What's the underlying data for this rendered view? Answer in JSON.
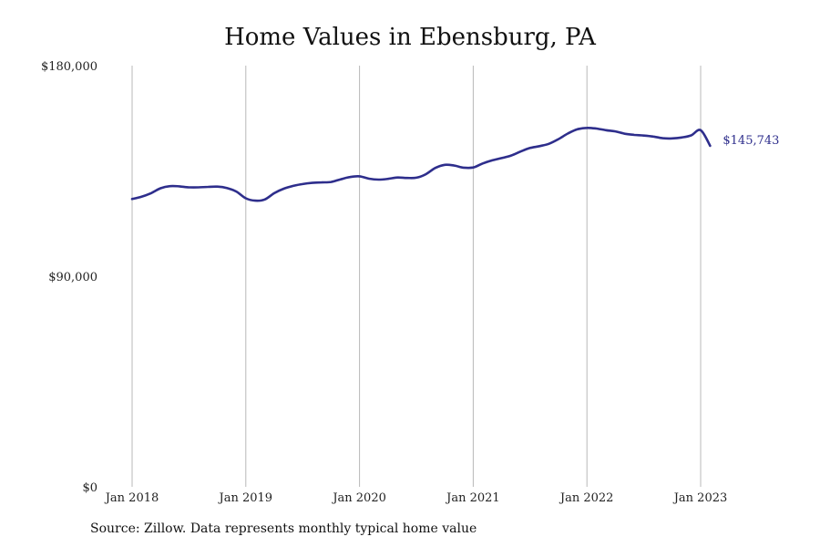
{
  "chart_data": {
    "type": "line",
    "title": "Home Values in Ebensburg, PA",
    "xlabel": "",
    "ylabel": "",
    "ylim": [
      0,
      180000
    ],
    "y_ticks": [
      {
        "value": 0,
        "label": "$0"
      },
      {
        "value": 90000,
        "label": "$90,000"
      },
      {
        "value": 180000,
        "label": "$180,000"
      }
    ],
    "x_ticks": [
      {
        "value": 0,
        "label": "Jan 2018"
      },
      {
        "value": 12,
        "label": "Jan 2019"
      },
      {
        "value": 24,
        "label": "Jan 2020"
      },
      {
        "value": 36,
        "label": "Jan 2021"
      },
      {
        "value": 48,
        "label": "Jan 2022"
      },
      {
        "value": 60,
        "label": "Jan 2023"
      }
    ],
    "grid": "vertical",
    "series": [
      {
        "color": "#2e2e8c",
        "x": [
          0,
          1,
          2,
          3,
          4,
          5,
          6,
          7,
          8,
          9,
          10,
          11,
          12,
          13,
          14,
          15,
          16,
          17,
          18,
          19,
          20,
          21,
          22,
          23,
          24,
          25,
          26,
          27,
          28,
          29,
          30,
          31,
          32,
          33,
          34,
          35,
          36,
          37,
          38,
          39,
          40,
          41,
          42,
          43,
          44,
          45,
          46,
          47,
          48,
          49,
          50,
          51,
          52,
          53,
          54,
          55,
          56,
          57,
          58,
          59,
          60,
          61
        ],
        "values": [
          123000,
          124000,
          125500,
          127600,
          128500,
          128400,
          128000,
          128000,
          128200,
          128300,
          127700,
          126200,
          123300,
          122300,
          122800,
          125500,
          127400,
          128600,
          129400,
          129900,
          130100,
          130300,
          131400,
          132400,
          132700,
          131700,
          131300,
          131600,
          132200,
          132000,
          132100,
          133600,
          136300,
          137600,
          137300,
          136400,
          136500,
          138200,
          139500,
          140500,
          141600,
          143300,
          144800,
          145600,
          146600,
          148600,
          151000,
          152800,
          153400,
          153100,
          152400,
          151900,
          150900,
          150400,
          150100,
          149700,
          149000,
          148900,
          149300,
          150200,
          152400,
          145743
        ]
      }
    ],
    "last_value_label": "$145,743",
    "source": "Source: Zillow. Data represents monthly typical home value"
  }
}
